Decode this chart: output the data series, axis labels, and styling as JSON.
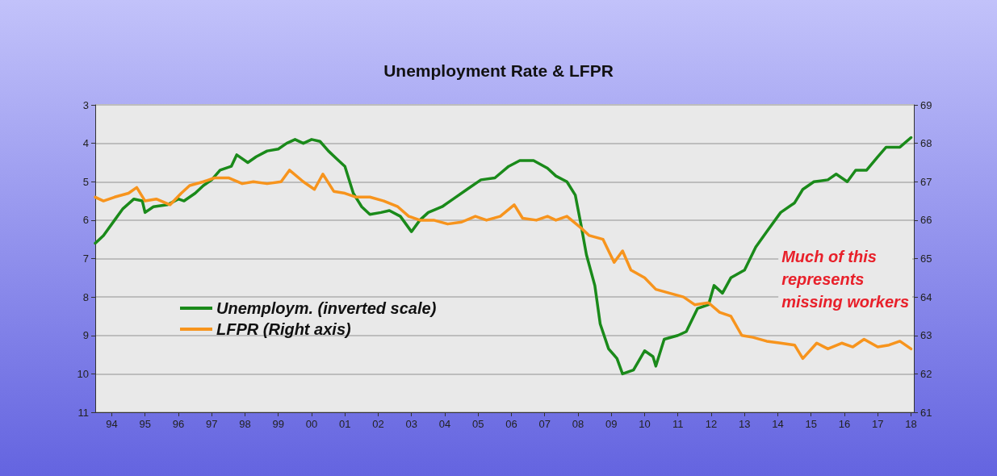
{
  "chart_data": {
    "type": "line",
    "title": "Unemployment Rate & LFPR",
    "annotations": [
      "Much of this\nrepresents\nmissing workers"
    ],
    "xlim": [
      "1994-01",
      "2018-08"
    ],
    "xticks": [
      {
        "value": "1994-07",
        "label": "94"
      },
      {
        "value": "1995-07",
        "label": "95"
      },
      {
        "value": "1996-07",
        "label": "96"
      },
      {
        "value": "1997-07",
        "label": "97"
      },
      {
        "value": "1998-07",
        "label": "98"
      },
      {
        "value": "1999-07",
        "label": "99"
      },
      {
        "value": "2000-07",
        "label": "00"
      },
      {
        "value": "2001-07",
        "label": "01"
      },
      {
        "value": "2002-07",
        "label": "02"
      },
      {
        "value": "2003-07",
        "label": "03"
      },
      {
        "value": "2004-07",
        "label": "04"
      },
      {
        "value": "2005-07",
        "label": "05"
      },
      {
        "value": "2006-07",
        "label": "06"
      },
      {
        "value": "2007-07",
        "label": "07"
      },
      {
        "value": "2008-07",
        "label": "08"
      },
      {
        "value": "2009-07",
        "label": "09"
      },
      {
        "value": "2010-07",
        "label": "10"
      },
      {
        "value": "2011-07",
        "label": "11"
      },
      {
        "value": "2012-07",
        "label": "12"
      },
      {
        "value": "2013-07",
        "label": "13"
      },
      {
        "value": "2014-07",
        "label": "14"
      },
      {
        "value": "2015-07",
        "label": "15"
      },
      {
        "value": "2016-07",
        "label": "16"
      },
      {
        "value": "2017-07",
        "label": "17"
      },
      {
        "value": "2018-07",
        "label": "18"
      }
    ],
    "ylim": [
      11,
      3
    ],
    "yticks": [
      3,
      4,
      5,
      6,
      7,
      8,
      9,
      10,
      11
    ],
    "y2lim": [
      61,
      69
    ],
    "y2ticks": [
      61,
      62,
      63,
      64,
      65,
      66,
      67,
      68,
      69
    ],
    "grid": "y",
    "legend": "bottom left",
    "marker": "none",
    "line_style": "solid",
    "series": [
      {
        "name": "Unemploym. (inverted scale)",
        "color": "#1a8a1a",
        "x": [
          "1994-01",
          "1994-04",
          "1994-08",
          "1994-11",
          "1995-03",
          "1995-06",
          "1995-07",
          "1995-10",
          "1996-03",
          "1996-07",
          "1996-09",
          "1997-01",
          "1997-04",
          "1997-07",
          "1997-10",
          "1998-02",
          "1998-04",
          "1998-08",
          "1998-11",
          "1999-03",
          "1999-07",
          "1999-10",
          "2000-01",
          "2000-04",
          "2000-07",
          "2000-10",
          "2001-01",
          "2001-04",
          "2001-07",
          "2001-10",
          "2002-01",
          "2002-04",
          "2002-08",
          "2002-11",
          "2003-03",
          "2003-07",
          "2003-10",
          "2004-01",
          "2004-06",
          "2004-10",
          "2005-03",
          "2005-08",
          "2006-01",
          "2006-06",
          "2006-10",
          "2007-03",
          "2007-08",
          "2007-11",
          "2008-03",
          "2008-06",
          "2008-08",
          "2008-10",
          "2009-01",
          "2009-03",
          "2009-06",
          "2009-09",
          "2009-11",
          "2010-03",
          "2010-07",
          "2010-10",
          "2010-11",
          "2011-02",
          "2011-07",
          "2011-10",
          "2012-02",
          "2012-06",
          "2012-08",
          "2012-11",
          "2013-02",
          "2013-07",
          "2013-11",
          "2014-03",
          "2014-08",
          "2015-01",
          "2015-04",
          "2015-08",
          "2016-01",
          "2016-04",
          "2016-08",
          "2016-11",
          "2017-03",
          "2017-07",
          "2017-10",
          "2018-03",
          "2018-07"
        ],
        "values": [
          6.6,
          6.4,
          6.0,
          5.7,
          5.45,
          5.5,
          5.8,
          5.65,
          5.6,
          5.45,
          5.5,
          5.3,
          5.1,
          4.95,
          4.7,
          4.6,
          4.3,
          4.5,
          4.35,
          4.2,
          4.15,
          4.0,
          3.9,
          4.0,
          3.9,
          3.95,
          4.2,
          4.4,
          4.6,
          5.3,
          5.65,
          5.85,
          5.8,
          5.75,
          5.9,
          6.3,
          6.0,
          5.8,
          5.65,
          5.45,
          5.2,
          4.95,
          4.9,
          4.6,
          4.45,
          4.45,
          4.65,
          4.85,
          5.0,
          5.35,
          6.1,
          6.9,
          7.7,
          8.7,
          9.35,
          9.6,
          10.0,
          9.9,
          9.4,
          9.55,
          9.8,
          9.1,
          9.0,
          8.9,
          8.3,
          8.2,
          7.7,
          7.9,
          7.5,
          7.3,
          6.7,
          6.3,
          5.8,
          5.55,
          5.2,
          5.0,
          4.95,
          4.8,
          5.0,
          4.7,
          4.7,
          4.35,
          4.1,
          4.1,
          3.85
        ]
      },
      {
        "name": "LFPR (Right axis)",
        "color": "#f7941d",
        "axis": "y2",
        "x": [
          "1994-01",
          "1994-04",
          "1994-08",
          "1995-01",
          "1995-04",
          "1995-07",
          "1995-11",
          "1996-04",
          "1996-08",
          "1996-11",
          "1997-04",
          "1997-08",
          "1998-01",
          "1998-06",
          "1998-10",
          "1999-03",
          "1999-08",
          "1999-11",
          "2000-04",
          "2000-08",
          "2000-11",
          "2001-03",
          "2001-07",
          "2001-11",
          "2002-04",
          "2002-09",
          "2003-02",
          "2003-06",
          "2003-10",
          "2004-03",
          "2004-08",
          "2005-01",
          "2005-06",
          "2005-10",
          "2006-03",
          "2006-08",
          "2006-11",
          "2007-04",
          "2007-08",
          "2007-11",
          "2008-03",
          "2008-08",
          "2008-11",
          "2009-04",
          "2009-08",
          "2009-11",
          "2010-02",
          "2010-07",
          "2010-11",
          "2011-04",
          "2011-09",
          "2012-01",
          "2012-06",
          "2012-10",
          "2013-02",
          "2013-06",
          "2013-10",
          "2014-03",
          "2014-08",
          "2015-01",
          "2015-04",
          "2015-09",
          "2016-01",
          "2016-06",
          "2016-10",
          "2017-02",
          "2017-07",
          "2017-11",
          "2018-03",
          "2018-07"
        ],
        "values": [
          66.6,
          66.5,
          66.6,
          66.7,
          66.85,
          66.5,
          66.55,
          66.4,
          66.7,
          66.9,
          67.0,
          67.1,
          67.1,
          66.95,
          67.0,
          66.95,
          67.0,
          67.3,
          67.0,
          66.8,
          67.2,
          66.75,
          66.7,
          66.6,
          66.6,
          66.5,
          66.35,
          66.1,
          66.0,
          66.0,
          65.9,
          65.95,
          66.1,
          66.0,
          66.1,
          66.4,
          66.05,
          66.0,
          66.1,
          66.0,
          66.1,
          65.8,
          65.6,
          65.5,
          64.9,
          65.2,
          64.7,
          64.5,
          64.2,
          64.1,
          64.0,
          63.8,
          63.85,
          63.6,
          63.5,
          63.0,
          62.95,
          62.85,
          62.8,
          62.75,
          62.4,
          62.8,
          62.65,
          62.8,
          62.7,
          62.9,
          62.7,
          62.75,
          62.85,
          62.65
        ]
      }
    ]
  }
}
